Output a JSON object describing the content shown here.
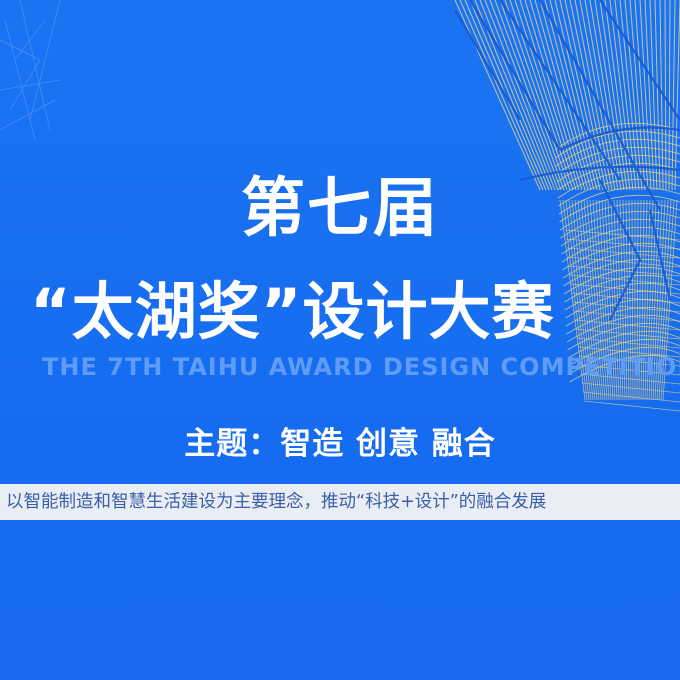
{
  "title": {
    "line1": "第七届",
    "line2": "“太湖奖”设计大赛"
  },
  "subtitle_en": "THE 7TH TAIHU AWARD DESIGN COMPETITION",
  "theme": "主题：智造 创意 融合",
  "description": "以智能制造和智慧生活建设为主要理念，推动“科技+设计”的融合发展",
  "colors": {
    "background": "#1a6ff0",
    "title": "#ffffff",
    "subtitle": "#5f9cf7",
    "strip_bg": "#e9edf4",
    "strip_text": "#3a5fa8",
    "sculpture_gold": "#e6d28a"
  }
}
